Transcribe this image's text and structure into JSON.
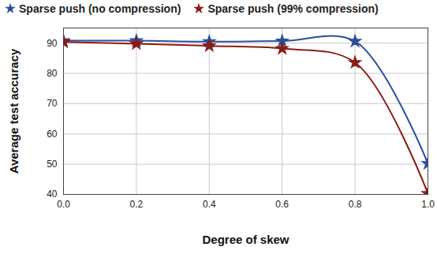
{
  "chart_data": {
    "type": "line",
    "x_label": "Degree of skew",
    "y_label": "Average test accuracy",
    "x": [
      0,
      0.2,
      0.4,
      0.6,
      0.8,
      1.0
    ],
    "series": [
      {
        "name": "Sparse push (no compression)",
        "color": "#2b4f9e",
        "values": [
          90.8,
          90.8,
          90.5,
          90.7,
          90.6,
          50.2
        ]
      },
      {
        "name": "Sparse push (99% compression)",
        "color": "#8b1c14",
        "values": [
          90.4,
          89.8,
          89.1,
          88.2,
          83.6,
          40.3
        ]
      }
    ],
    "xlim": [
      0,
      1
    ],
    "xticks": [
      {
        "value": 0,
        "label": "0.0"
      },
      0.2,
      0.4,
      0.6,
      0.8,
      {
        "value": 1,
        "label": "1.0"
      }
    ],
    "ylim": [
      40,
      95
    ],
    "yticks": [
      40,
      50,
      60,
      70,
      80,
      90
    ],
    "grid": true,
    "legend": "top",
    "marker": "star",
    "line_style": "solid"
  }
}
